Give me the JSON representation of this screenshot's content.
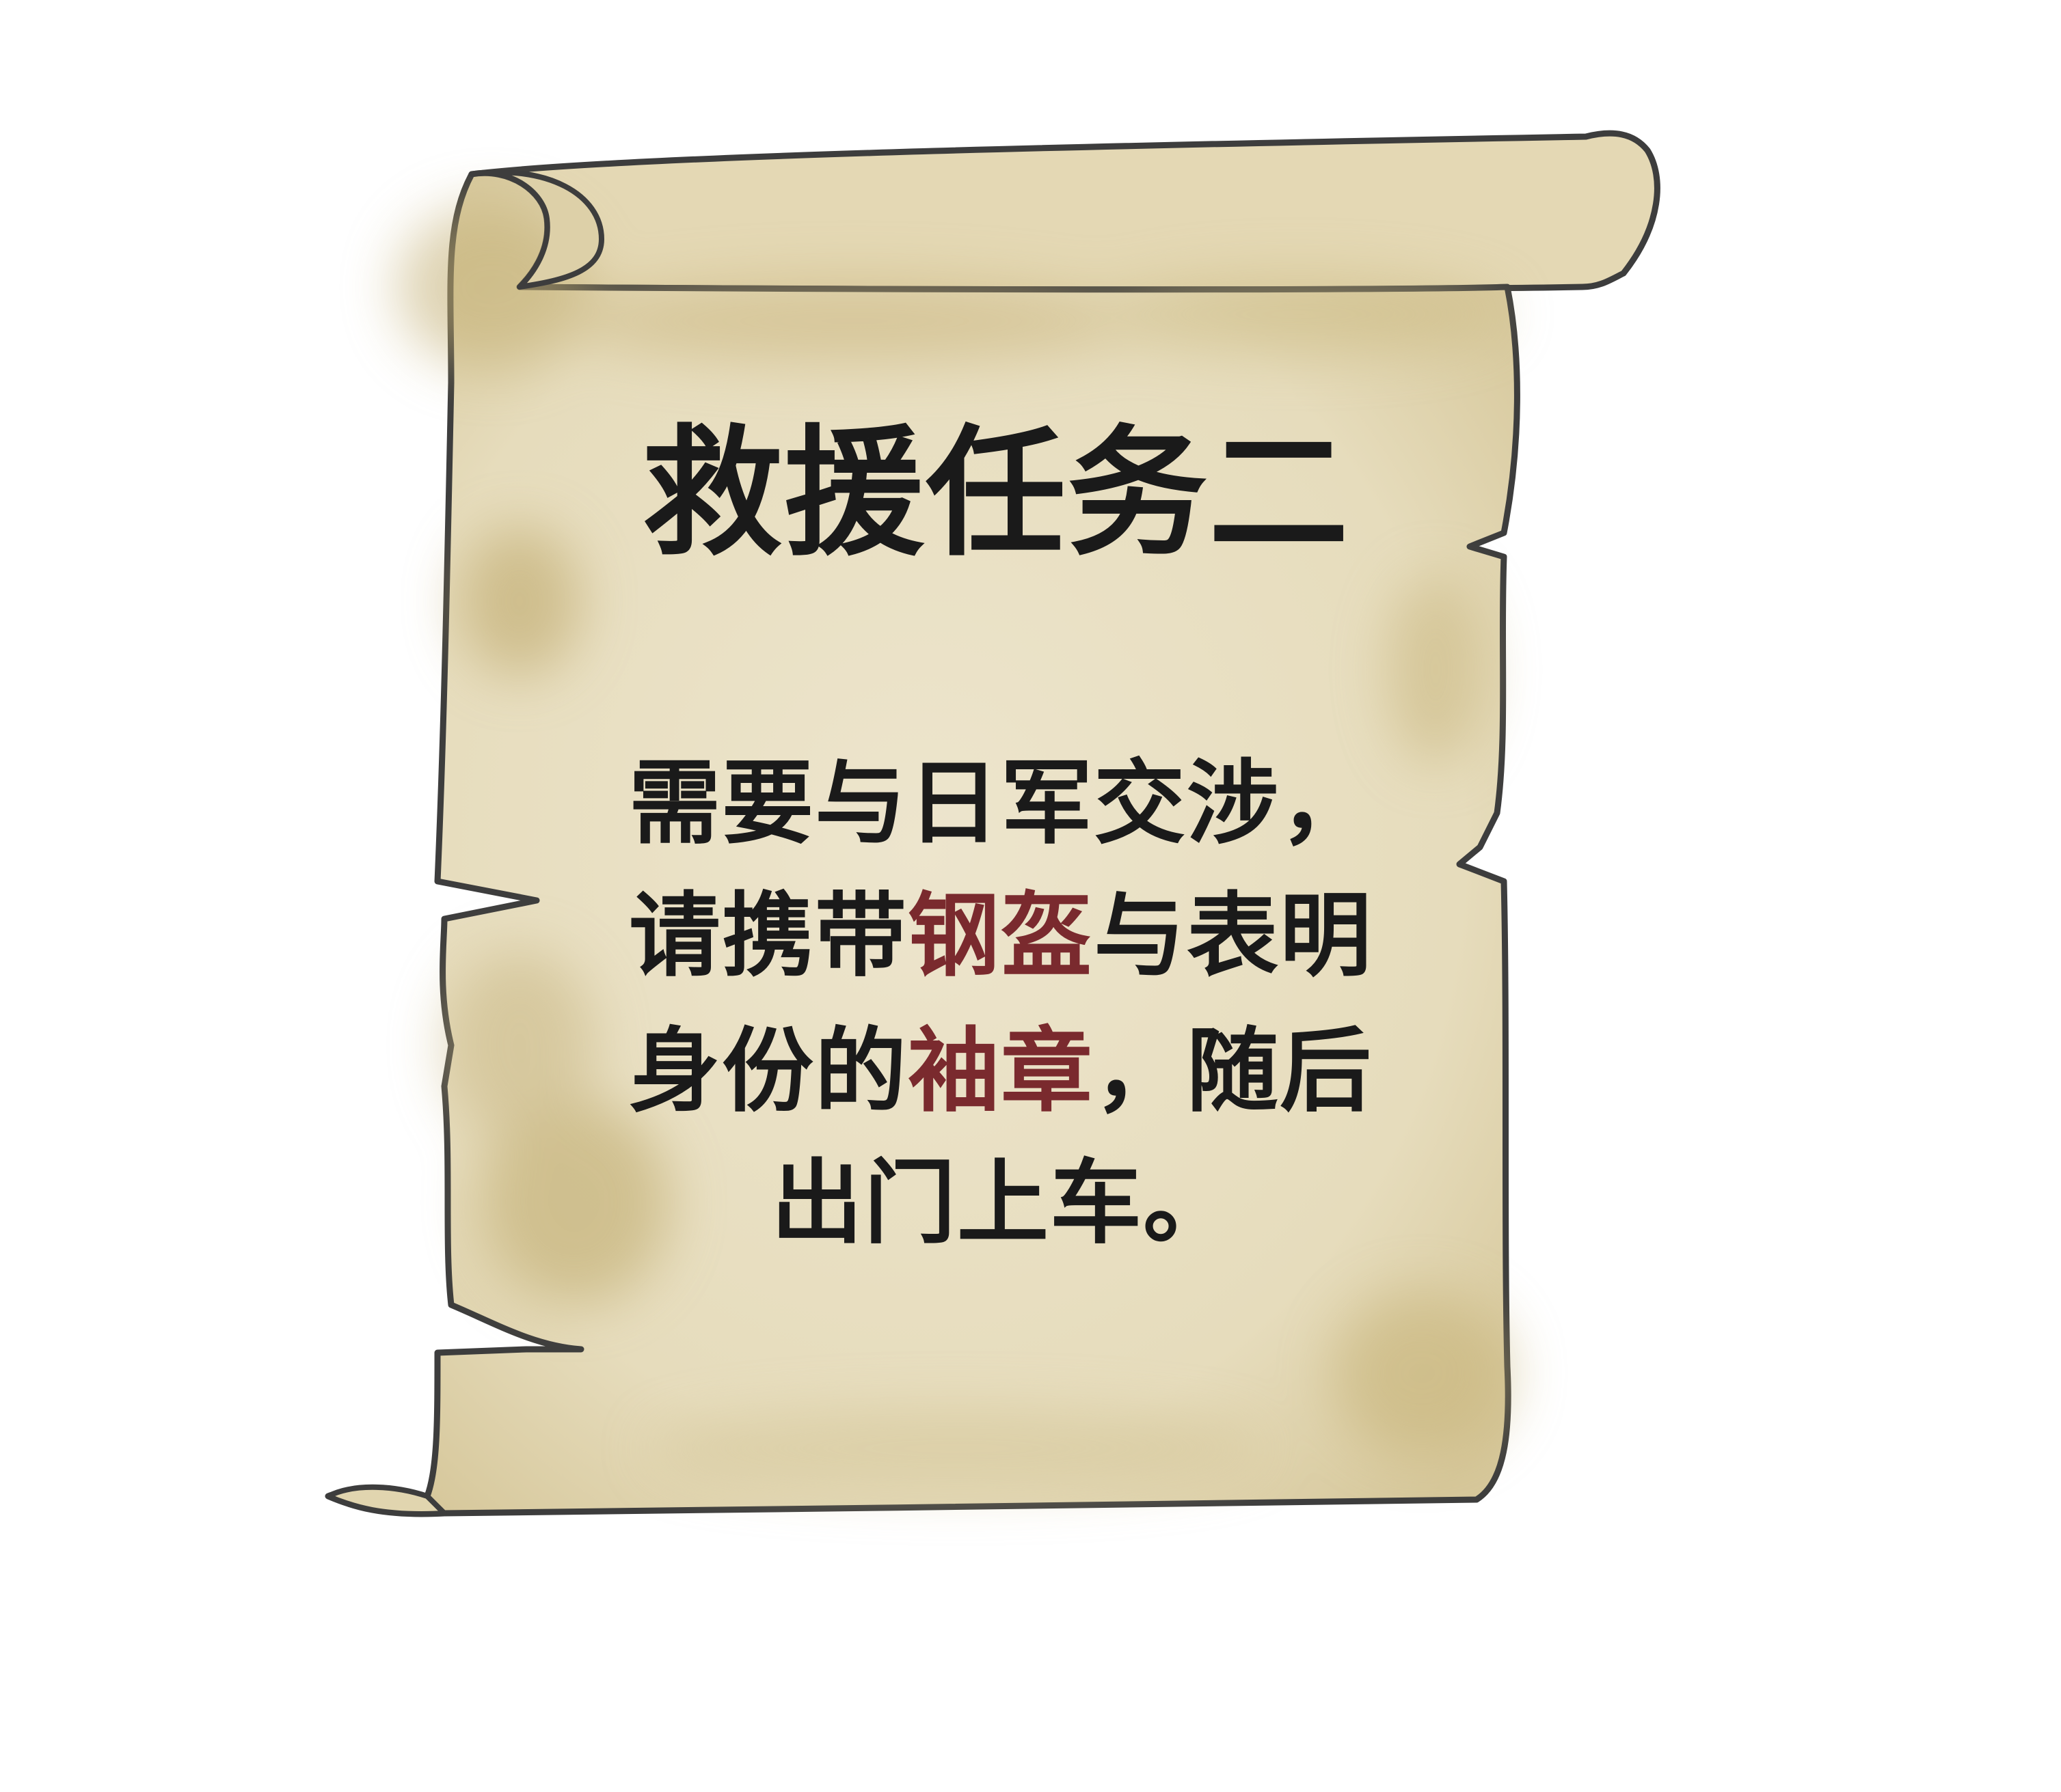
{
  "title": "救援任务二",
  "body": {
    "line1": "需要与日军交涉，",
    "line2": {
      "part1": "请携带",
      "highlight1": "钢盔",
      "part2": "与表明"
    },
    "line3": {
      "part1": "身份的",
      "highlight2": "袖章",
      "part2": "，随后"
    },
    "line4": "出门上车。"
  },
  "colors": {
    "parchment": "#ece3c9",
    "parchment_stain": "#c9b98a",
    "outline": "#3d3d3d",
    "text": "#1a1a1a",
    "highlight": "#7a2a2e",
    "background": "#ffffff"
  }
}
